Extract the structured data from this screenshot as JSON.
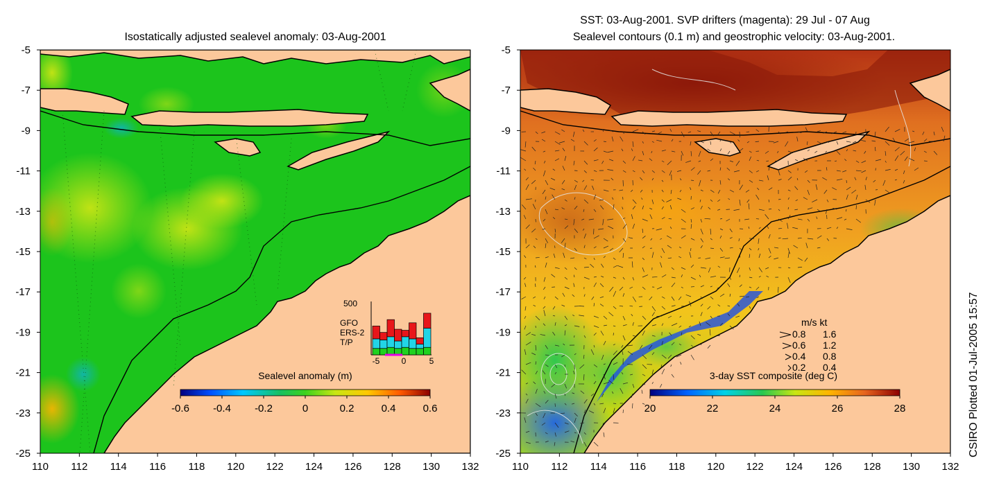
{
  "left_panel": {
    "title": "Isostatically adjusted sealevel anomaly: 03-Aug-2001",
    "colorbar": {
      "label": "Sealevel anomaly (m)",
      "ticks": [
        "-0.6",
        "-0.4",
        "-0.2",
        "0",
        "0.2",
        "0.4",
        "0.6"
      ],
      "range": [
        -0.6,
        0.6
      ]
    },
    "histogram": {
      "ymax_label": "500",
      "xticks": [
        "-5",
        "0",
        "5"
      ],
      "legend": [
        {
          "name": "GFO",
          "color": "#e8161a"
        },
        {
          "name": "ERS-2",
          "color": "#22d4e6"
        },
        {
          "name": "T/P",
          "color": "#1fd21f"
        }
      ],
      "bars": [
        {
          "tp": 60,
          "ers": 90,
          "gfo": 120
        },
        {
          "tp": 60,
          "ers": 80,
          "gfo": 70
        },
        {
          "tp": 70,
          "ers": 100,
          "gfo": 160
        },
        {
          "tp": 60,
          "ers": 70,
          "gfo": 110
        },
        {
          "tp": 70,
          "ers": 100,
          "gfo": 60
        },
        {
          "tp": 60,
          "ers": 90,
          "gfo": 150
        },
        {
          "tp": 60,
          "ers": 40,
          "gfo": 60
        },
        {
          "tp": 70,
          "ers": 180,
          "gfo": 140
        }
      ]
    }
  },
  "right_panel": {
    "title_line1": "SST: 03-Aug-2001. SVP drifters (magenta): 29 Jul - 07 Aug",
    "title_line2": "Sealevel contours (0.1 m) and geostrophic velocity: 03-Aug-2001.",
    "colorbar": {
      "label": "3-day SST composite (deg C)",
      "ticks": [
        "20",
        "22",
        "24",
        "26",
        "28"
      ],
      "range": [
        20,
        28
      ]
    },
    "velocity_legend": {
      "header": "m/s  kt",
      "rows": [
        {
          "ms": "0.8",
          "kt": "1.6"
        },
        {
          "ms": "0.6",
          "kt": "1.2"
        },
        {
          "ms": "0.4",
          "kt": "0.8"
        },
        {
          "ms": "0.2",
          "kt": "0.4"
        }
      ]
    }
  },
  "axes": {
    "x_ticks": [
      "110",
      "112",
      "114",
      "116",
      "118",
      "120",
      "122",
      "124",
      "126",
      "128",
      "130",
      "132"
    ],
    "y_ticks": [
      "-5",
      "-7",
      "-9",
      "-11",
      "-13",
      "-15",
      "-17",
      "-19",
      "-21",
      "-23",
      "-25"
    ],
    "lon_range": [
      110,
      132
    ],
    "lat_range": [
      -25,
      -5
    ]
  },
  "credit": "CSIRO Plotted 01-Jul-2005 15:57",
  "colors": {
    "land": "#fcc89b",
    "sla_base": "#1cc41c",
    "sst_warm": "#e88a1e",
    "sst_hot": "#9c1a0a"
  }
}
